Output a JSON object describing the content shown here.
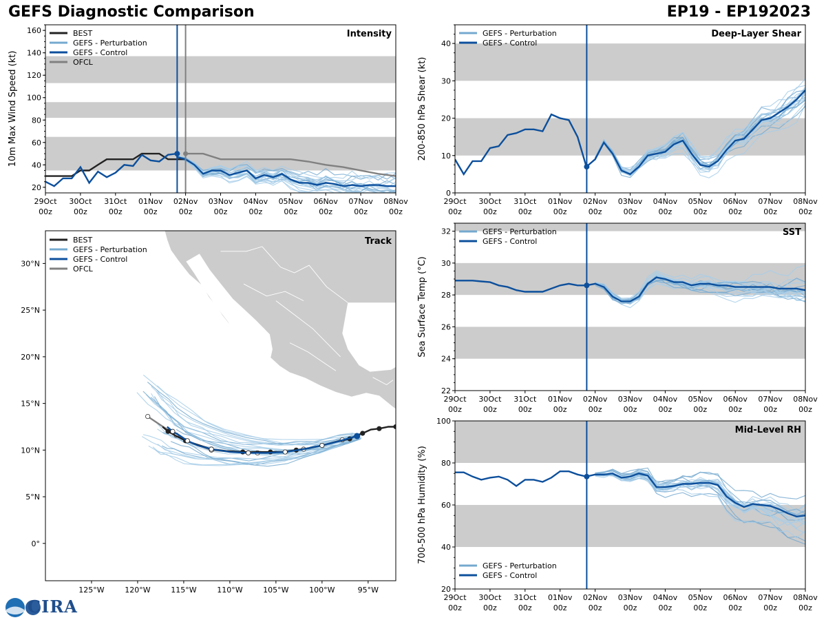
{
  "header": {
    "title": "GEFS Diagnostic Comparison",
    "storm_id": "EP19 - EP192023"
  },
  "logo": {
    "text": "CIRA"
  },
  "colors": {
    "best": "#222222",
    "perturbation": "#74a9cf",
    "control": "#0c4f9c",
    "ofcl": "#808080",
    "band": "#cccccc",
    "pert_light": "#a6cde8"
  },
  "time_axis": {
    "labels_top": [
      "29Oct",
      "30Oct",
      "31Oct",
      "01Nov",
      "02Nov",
      "03Nov",
      "04Nov",
      "05Nov",
      "06Nov",
      "07Nov",
      "08Nov"
    ],
    "label_bottom": "00z",
    "init_day": 3.76,
    "ofcl_init_day": 4.0
  },
  "chart_data": [
    {
      "id": "intensity",
      "type": "line",
      "title": "Intensity",
      "ylabel": "10m Max Wind Speed (kt)",
      "ylim": [
        15,
        165
      ],
      "yticks": [
        20,
        40,
        60,
        80,
        100,
        120,
        140,
        160
      ],
      "bands": [
        [
          35,
          65
        ],
        [
          82,
          96
        ],
        [
          113,
          137
        ]
      ],
      "legend": [
        "BEST",
        "GEFS - Perturbation",
        "GEFS - Control",
        "OFCL"
      ],
      "series": [
        {
          "name": "BEST",
          "x": [
            0,
            0.25,
            0.5,
            0.75,
            1,
            1.25,
            1.5,
            1.75,
            2,
            2.25,
            2.5,
            2.75,
            3,
            3.25,
            3.5,
            3.75,
            4
          ],
          "values": [
            30,
            30,
            30,
            30,
            35,
            35,
            40,
            45,
            45,
            45,
            45,
            50,
            50,
            50,
            45,
            45,
            45
          ]
        },
        {
          "name": "GEFS - Control",
          "x": [
            0,
            0.25,
            0.5,
            0.75,
            1,
            1.25,
            1.5,
            1.75,
            2,
            2.25,
            2.5,
            2.75,
            3,
            3.25,
            3.5,
            3.75,
            3.76,
            4,
            4.25,
            4.5,
            4.75,
            5,
            5.25,
            5.5,
            5.75,
            6,
            6.25,
            6.5,
            6.75,
            7,
            7.25,
            7.5,
            7.75,
            8,
            8.25,
            8.5,
            8.75,
            9,
            9.25,
            9.5,
            9.75,
            10
          ],
          "values": [
            25,
            21,
            28,
            28,
            38,
            24,
            34,
            29,
            33,
            40,
            39,
            49,
            44,
            43,
            49,
            50,
            47,
            45,
            40,
            32,
            35,
            35,
            31,
            33,
            35,
            28,
            31,
            29,
            32,
            27,
            24,
            24,
            22,
            24,
            23,
            21,
            22,
            21,
            22,
            22,
            21,
            21
          ]
        },
        {
          "name": "OFCL",
          "x": [
            4,
            4.5,
            5,
            5.5,
            6,
            6.5,
            7,
            7.5,
            8,
            8.5,
            9,
            9.5,
            10
          ],
          "values": [
            50,
            50,
            45,
            45,
            45,
            45,
            45,
            43,
            40,
            38,
            35,
            32,
            30
          ]
        }
      ]
    },
    {
      "id": "shear",
      "type": "line",
      "title": "Deep-Layer Shear",
      "ylabel": "200-850 hPa Shear (kt)",
      "ylim": [
        0,
        45
      ],
      "yticks": [
        0,
        10,
        20,
        30,
        40
      ],
      "bands": [
        [
          10,
          20
        ],
        [
          30,
          40
        ]
      ],
      "legend": [
        "GEFS - Perturbation",
        "GEFS - Control"
      ],
      "series": [
        {
          "name": "GEFS - Control",
          "x": [
            0,
            0.25,
            0.5,
            0.75,
            1,
            1.25,
            1.5,
            1.75,
            2,
            2.25,
            2.5,
            2.75,
            3,
            3.25,
            3.5,
            3.75,
            4,
            4.25,
            4.5,
            4.75,
            5,
            5.25,
            5.5,
            5.75,
            6,
            6.25,
            6.5,
            6.75,
            7,
            7.25,
            7.5,
            7.75,
            8,
            8.25,
            8.5,
            8.75,
            9,
            9.25,
            9.5,
            9.75,
            10
          ],
          "values": [
            9,
            5,
            8.5,
            8.5,
            12,
            12.5,
            15.5,
            16,
            17,
            17,
            16.5,
            21,
            20,
            19.5,
            15,
            7,
            9,
            13.5,
            10.5,
            6,
            5,
            7,
            10,
            10.5,
            11,
            13,
            14,
            10.5,
            7.5,
            7,
            8.5,
            11.5,
            14,
            14.5,
            17,
            19.5,
            20,
            21.5,
            23,
            25,
            27.5
          ]
        }
      ]
    },
    {
      "id": "sst",
      "type": "line",
      "title": "SST",
      "ylabel": "Sea Surface Temp (°C)",
      "ylim": [
        22,
        32.5
      ],
      "yticks": [
        22,
        24,
        26,
        28,
        30,
        32
      ],
      "bands": [
        [
          24,
          26
        ],
        [
          28,
          30
        ],
        [
          32,
          33
        ]
      ],
      "legend": [
        "GEFS - Perturbation",
        "GEFS - Control"
      ],
      "series": [
        {
          "name": "GEFS - Control",
          "x": [
            0,
            0.25,
            0.5,
            0.75,
            1,
            1.25,
            1.5,
            1.75,
            2,
            2.25,
            2.5,
            2.75,
            3,
            3.25,
            3.5,
            3.75,
            4,
            4.25,
            4.5,
            4.75,
            5,
            5.25,
            5.5,
            5.75,
            6,
            6.25,
            6.5,
            6.75,
            7,
            7.25,
            7.5,
            7.75,
            8,
            8.25,
            8.5,
            8.75,
            9,
            9.25,
            9.5,
            9.75,
            10
          ],
          "values": [
            28.9,
            28.9,
            28.9,
            28.85,
            28.8,
            28.6,
            28.5,
            28.3,
            28.2,
            28.2,
            28.2,
            28.4,
            28.6,
            28.7,
            28.6,
            28.6,
            28.7,
            28.5,
            27.9,
            27.6,
            27.6,
            27.9,
            28.7,
            29.1,
            29.0,
            28.8,
            28.8,
            28.6,
            28.7,
            28.7,
            28.6,
            28.6,
            28.5,
            28.5,
            28.5,
            28.5,
            28.5,
            28.4,
            28.4,
            28.4,
            28.3
          ]
        }
      ]
    },
    {
      "id": "rh",
      "type": "line",
      "title": "Mid-Level RH",
      "ylabel": "700-500 hPa Humidity (%)",
      "ylim": [
        20,
        100
      ],
      "yticks": [
        20,
        40,
        60,
        80,
        100
      ],
      "bands": [
        [
          40,
          60
        ],
        [
          80,
          100
        ]
      ],
      "legend": [
        "GEFS - Perturbation",
        "GEFS - Control"
      ],
      "series": [
        {
          "name": "GEFS - Control",
          "x": [
            0,
            0.25,
            0.5,
            0.75,
            1,
            1.25,
            1.5,
            1.75,
            2,
            2.25,
            2.5,
            2.75,
            3,
            3.25,
            3.5,
            3.75,
            4,
            4.25,
            4.5,
            4.75,
            5,
            5.25,
            5.5,
            5.75,
            6,
            6.25,
            6.5,
            6.75,
            7,
            7.25,
            7.5,
            7.75,
            8,
            8.25,
            8.5,
            8.75,
            9,
            9.25,
            9.5,
            9.75,
            10
          ],
          "values": [
            75.5,
            75.5,
            73.5,
            72,
            73,
            73.5,
            72,
            69,
            72,
            72,
            71,
            73,
            76,
            76,
            74.5,
            73.5,
            74.5,
            74.5,
            75,
            73,
            73.5,
            75,
            74,
            68.5,
            68.5,
            69,
            70,
            70,
            70.5,
            70.5,
            69.5,
            64,
            61,
            59,
            60.5,
            60,
            59.5,
            58,
            56,
            54.5,
            55
          ]
        }
      ]
    },
    {
      "id": "track",
      "type": "scatter",
      "title": "Track",
      "legend": [
        "BEST",
        "GEFS - Perturbation",
        "GEFS - Control",
        "OFCL"
      ],
      "xlim": [
        -130,
        -92
      ],
      "ylim": [
        -4,
        33.5
      ],
      "xticks": [
        -125,
        -120,
        -115,
        -110,
        -105,
        -100,
        -95
      ],
      "xtick_labels": [
        "125°W",
        "120°W",
        "115°W",
        "110°W",
        "105°W",
        "100°W",
        "95°W"
      ],
      "yticks": [
        0,
        5,
        10,
        15,
        20,
        25,
        30
      ],
      "ytick_labels": [
        "0°",
        "5°N",
        "10°N",
        "15°N",
        "20°N",
        "25°N",
        "30°N"
      ],
      "best_track": {
        "lon": [
          -92.0,
          -92.8,
          -93.8,
          -94.7,
          -95.6,
          -96.2,
          -97.0,
          -98.4,
          -100.0,
          -101.4,
          -102.8,
          -104.2,
          -105.6,
          -107.0,
          -108.6,
          -110.4,
          -112.0,
          -113.6,
          -114.8,
          -115.8,
          -116.7,
          -117.3
        ],
        "lat": [
          12.5,
          12.5,
          12.3,
          12.2,
          11.8,
          11.6,
          11.2,
          10.9,
          10.5,
          10.2,
          10.0,
          9.8,
          9.8,
          9.8,
          9.8,
          9.9,
          10.1,
          10.6,
          11.0,
          11.5,
          12.0,
          12.5
        ]
      },
      "control_track": {
        "lon": [
          -96.2,
          -98.0,
          -100.0,
          -102.0,
          -104.0,
          -106.0,
          -108.0,
          -110.0,
          -112.0,
          -113.5,
          -114.6,
          -115.5,
          -116.2,
          -116.8
        ],
        "lat": [
          11.5,
          11.0,
          10.5,
          10.1,
          9.8,
          9.7,
          9.7,
          9.8,
          10.1,
          10.5,
          11.0,
          11.6,
          12.0,
          12.5
        ]
      },
      "ofcl_track": {
        "lon": [
          -97.8,
          -100.0,
          -102.0,
          -104.5,
          -107.0,
          -109.5,
          -112.0,
          -114.0,
          -115.8,
          -117.4,
          -118.9
        ],
        "lat": [
          11.1,
          10.5,
          10.1,
          9.8,
          9.7,
          9.8,
          10.0,
          10.7,
          11.6,
          12.6,
          13.6
        ]
      }
    }
  ]
}
